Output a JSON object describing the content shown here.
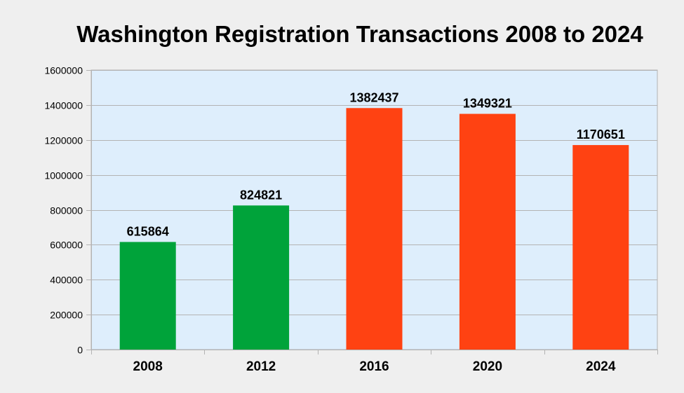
{
  "chart_data": {
    "type": "bar",
    "title": "Washington Registration Transactions 2008 to 2024",
    "categories": [
      "2008",
      "2012",
      "2016",
      "2020",
      "2024"
    ],
    "values": [
      615864,
      824821,
      1382437,
      1349321,
      1170651
    ],
    "bar_colors": [
      "#00a33a",
      "#00a33a",
      "#ff4212",
      "#ff4212",
      "#ff4212"
    ],
    "ylim": [
      0,
      1600000
    ],
    "yticks": [
      0,
      200000,
      400000,
      600000,
      800000,
      1000000,
      1200000,
      1400000,
      1600000
    ],
    "grid": true,
    "legend": "none",
    "plot_background": "#deeefc",
    "page_background": "#efefef",
    "data_labels": true
  }
}
